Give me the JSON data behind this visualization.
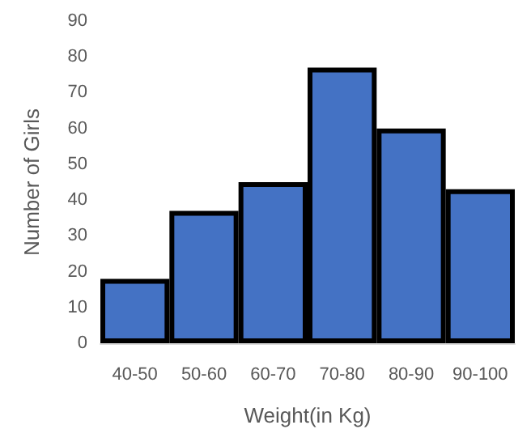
{
  "chart_data": {
    "type": "bar",
    "xlabel": "Weight(in Kg)",
    "ylabel": "Number of Girls",
    "categories": [
      "40-50",
      "50-60",
      "60-70",
      "70-80",
      "80-90",
      "90-100"
    ],
    "values": [
      18,
      37,
      45,
      77,
      60,
      43
    ],
    "color": "#4472c4",
    "ylim": [
      0,
      90
    ],
    "yticks": [
      0,
      10,
      20,
      30,
      40,
      50,
      60,
      70,
      80,
      90
    ],
    "grid": false
  }
}
